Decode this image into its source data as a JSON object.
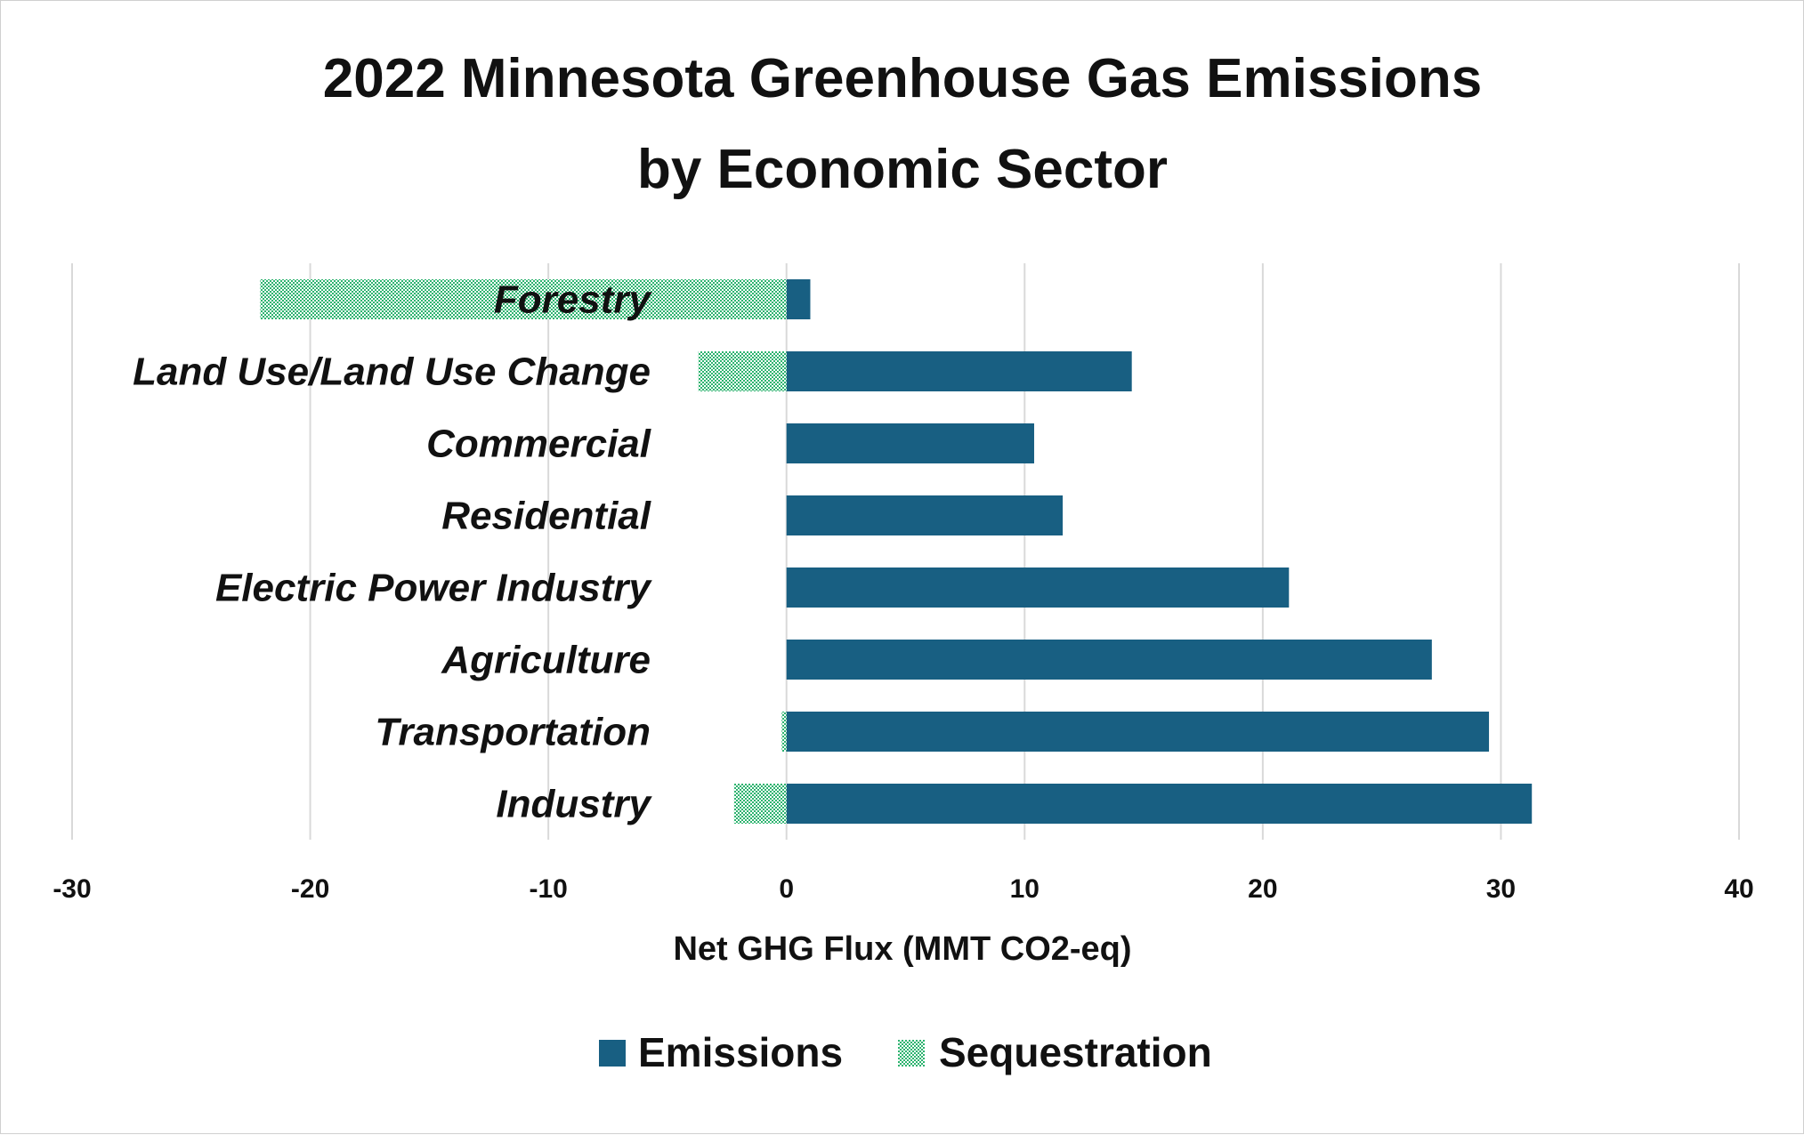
{
  "chart_data": {
    "type": "bar",
    "orientation": "horizontal",
    "stacked": true,
    "title": [
      "2022 Minnesota Greenhouse Gas Emissions",
      "by Economic Sector"
    ],
    "xlabel": "Net GHG Flux (MMT CO2-eq)",
    "ylabel": "",
    "xlim": [
      -30,
      40
    ],
    "xticks": [
      -30,
      -20,
      -10,
      0,
      10,
      20,
      30,
      40
    ],
    "grid": "vertical",
    "legend_position": "bottom",
    "categories": [
      "Forestry",
      "Land Use/Land Use Change",
      "Commercial",
      "Residential",
      "Electric Power Industry",
      "Agriculture",
      "Transportation",
      "Industry"
    ],
    "series": [
      {
        "name": "Emissions",
        "color": "#185f82",
        "pattern": "solid",
        "values": [
          1.0,
          14.5,
          10.4,
          11.6,
          21.1,
          27.1,
          29.5,
          31.3
        ]
      },
      {
        "name": "Sequestration",
        "color": "#2db36f",
        "pattern": "checker",
        "values": [
          -22.1,
          -3.7,
          0,
          0,
          0,
          0,
          -0.2,
          -2.2
        ]
      }
    ]
  }
}
